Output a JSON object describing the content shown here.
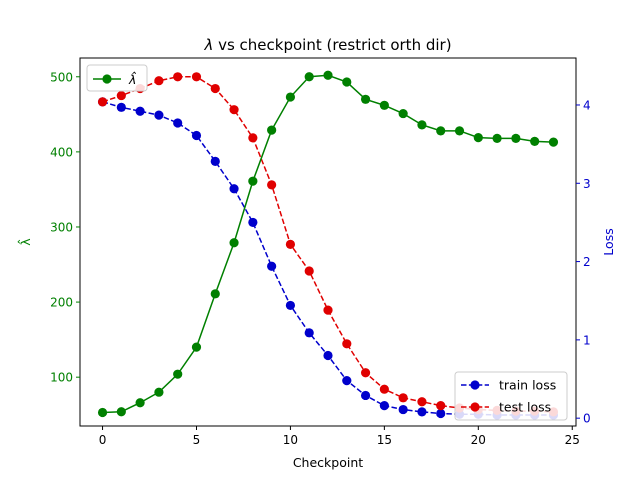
{
  "chart_data": {
    "type": "line",
    "title_prefix": "λ",
    "title_rest": " vs checkpoint (restrict orth dir)",
    "xlabel": "Checkpoint",
    "ylabel_left": "λ̂",
    "ylabel_right": "Loss",
    "xlim": [
      -1.2,
      25.2
    ],
    "ylim_left": [
      35,
      525
    ],
    "ylim_right": [
      -0.1,
      4.6
    ],
    "x_ticks": [
      0,
      5,
      10,
      15,
      20,
      25
    ],
    "y_ticks_left": [
      100,
      200,
      300,
      400,
      500
    ],
    "y_ticks_right": [
      0,
      1,
      2,
      3,
      4
    ],
    "grid": false,
    "x": [
      0,
      1,
      2,
      3,
      4,
      5,
      6,
      7,
      8,
      9,
      10,
      11,
      12,
      13,
      14,
      15,
      16,
      17,
      18,
      19,
      20,
      21,
      22,
      23,
      24
    ],
    "series": [
      {
        "name": "λ̂",
        "axis": "left",
        "color": "#008000",
        "style": "solid",
        "values": [
          53,
          54,
          66,
          80,
          104,
          140,
          211,
          279,
          361,
          429,
          473,
          500,
          502,
          493,
          470,
          462,
          451,
          436,
          428,
          428,
          419,
          418,
          418,
          414,
          413
        ]
      },
      {
        "name": "train loss",
        "axis": "right",
        "color": "#0000cc",
        "style": "dashed",
        "values": [
          4.04,
          3.97,
          3.92,
          3.87,
          3.77,
          3.61,
          3.28,
          2.93,
          2.5,
          1.94,
          1.44,
          1.09,
          0.8,
          0.48,
          0.29,
          0.16,
          0.11,
          0.08,
          0.06,
          0.05,
          0.05,
          0.04,
          0.04,
          0.04,
          0.04
        ]
      },
      {
        "name": "test loss",
        "axis": "right",
        "color": "#e00000",
        "style": "dashed",
        "values": [
          4.04,
          4.12,
          4.21,
          4.31,
          4.36,
          4.36,
          4.21,
          3.94,
          3.58,
          2.98,
          2.22,
          1.88,
          1.38,
          0.95,
          0.58,
          0.37,
          0.26,
          0.21,
          0.16,
          0.13,
          0.11,
          0.1,
          0.09,
          0.09,
          0.08
        ]
      }
    ],
    "legend_left_placement": "top-left",
    "legend_right_placement": "bottom-right"
  }
}
